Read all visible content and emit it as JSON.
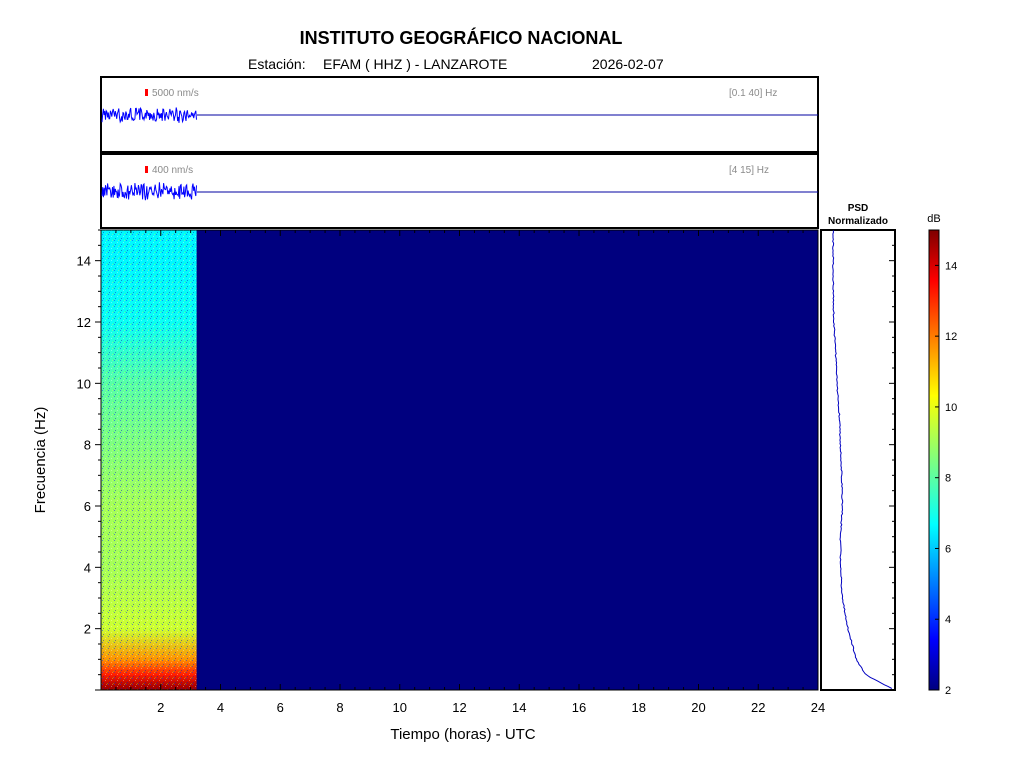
{
  "header": {
    "title": "INSTITUTO GEOGRÁFICO NACIONAL",
    "station_label": "Estación:",
    "station": "EFAM ( HHZ ) - LANZAROTE",
    "date": "2026-02-07"
  },
  "traces": [
    {
      "scale_label": "5000 nm/s",
      "band_label": "[0.1 40] Hz"
    },
    {
      "scale_label": "400 nm/s",
      "band_label": "[4 15] Hz"
    }
  ],
  "psd": {
    "title_line1": "PSD",
    "title_line2": "Normalizado"
  },
  "colorbar": {
    "unit": "dB",
    "min": 2,
    "max": 15,
    "ticks": [
      2,
      4,
      6,
      8,
      10,
      12,
      14
    ]
  },
  "colors": {
    "trace": "#0000ff",
    "scale_marker": "#ff0000",
    "background": "#00007f"
  },
  "chart_data": {
    "type": "heatmap",
    "xlabel": "Tiempo (horas) - UTC",
    "ylabel": "Frecuencia  (Hz)",
    "xlim": [
      0,
      24
    ],
    "ylim": [
      0,
      15
    ],
    "x_ticks": [
      2,
      4,
      6,
      8,
      10,
      12,
      14,
      16,
      18,
      20,
      22,
      24
    ],
    "y_ticks": [
      2,
      4,
      6,
      8,
      10,
      12,
      14
    ],
    "data_end_hour": 3.2,
    "band_profile_db": [
      {
        "freq": 0.1,
        "db": 14.5
      },
      {
        "freq": 0.5,
        "db": 13.0
      },
      {
        "freq": 1.0,
        "db": 11.5
      },
      {
        "freq": 2.0,
        "db": 9.5
      },
      {
        "freq": 4.0,
        "db": 9.0
      },
      {
        "freq": 6.0,
        "db": 9.0
      },
      {
        "freq": 8.0,
        "db": 8.5
      },
      {
        "freq": 10.0,
        "db": 8.0
      },
      {
        "freq": 12.0,
        "db": 7.0
      },
      {
        "freq": 14.0,
        "db": 6.8
      },
      {
        "freq": 15.0,
        "db": 6.8
      }
    ],
    "psd_profile": [
      {
        "freq": 0.05,
        "value": 0.98
      },
      {
        "freq": 0.5,
        "value": 0.55
      },
      {
        "freq": 1.0,
        "value": 0.4
      },
      {
        "freq": 2.0,
        "value": 0.26
      },
      {
        "freq": 3.0,
        "value": 0.17
      },
      {
        "freq": 4.0,
        "value": 0.14
      },
      {
        "freq": 5.0,
        "value": 0.14
      },
      {
        "freq": 6.0,
        "value": 0.17
      },
      {
        "freq": 7.0,
        "value": 0.16
      },
      {
        "freq": 8.0,
        "value": 0.14
      },
      {
        "freq": 9.0,
        "value": 0.12
      },
      {
        "freq": 10.0,
        "value": 0.08
      },
      {
        "freq": 11.0,
        "value": 0.06
      },
      {
        "freq": 12.0,
        "value": 0.03
      },
      {
        "freq": 13.0,
        "value": 0.02
      },
      {
        "freq": 14.0,
        "value": 0.02
      },
      {
        "freq": 15.0,
        "value": 0.02
      }
    ]
  }
}
